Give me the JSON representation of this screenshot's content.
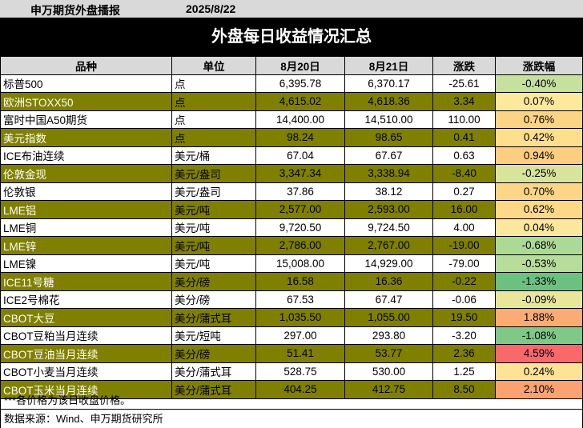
{
  "header": {
    "org": "申万期货外盘播报",
    "date": "2025/8/22"
  },
  "title": "外盘每日收益情况汇总",
  "columns": [
    "品种",
    "单位",
    "8月20日",
    "8月21日",
    "涨跌",
    "涨跌幅"
  ],
  "rows": [
    {
      "name": "标普500",
      "unit": "点",
      "d1": "6,395.78",
      "d2": "6,370.17",
      "chg": "-25.61",
      "pct": "-0.40%",
      "pct_color": "#c6e0a0",
      "style": "plain"
    },
    {
      "name": "欧洲STOXX50",
      "unit": "点",
      "d1": "4,615.02",
      "d2": "4,618.36",
      "chg": "3.34",
      "pct": "0.07%",
      "pct_color": "#fde89c",
      "style": "olive"
    },
    {
      "name": "富时中国A50期货",
      "unit": "点",
      "d1": "14,400.00",
      "d2": "14,510.00",
      "chg": "110.00",
      "pct": "0.76%",
      "pct_color": "#fdd384",
      "style": "plain"
    },
    {
      "name": "美元指数",
      "unit": "点",
      "d1": "98.24",
      "d2": "98.65",
      "chg": "0.41",
      "pct": "0.42%",
      "pct_color": "#fddf8e",
      "style": "olive"
    },
    {
      "name": "ICE布油连续",
      "unit": "美元/桶",
      "d1": "67.04",
      "d2": "67.67",
      "chg": "0.63",
      "pct": "0.94%",
      "pct_color": "#fcce80",
      "style": "plain"
    },
    {
      "name": "伦敦金现",
      "unit": "美元/盎司",
      "d1": "3,347.34",
      "d2": "3,338.94",
      "chg": "-8.40",
      "pct": "-0.25%",
      "pct_color": "#d7e49a",
      "style": "olive"
    },
    {
      "name": "伦敦银",
      "unit": "美元/盎司",
      "d1": "37.86",
      "d2": "38.12",
      "chg": "0.27",
      "pct": "0.70%",
      "pct_color": "#fdd586",
      "style": "plain"
    },
    {
      "name": "LME铝",
      "unit": "美元/吨",
      "d1": "2,577.00",
      "d2": "2,593.00",
      "chg": "16.00",
      "pct": "0.62%",
      "pct_color": "#fdd888",
      "style": "olive"
    },
    {
      "name": "LME铜",
      "unit": "美元/吨",
      "d1": "9,720.50",
      "d2": "9,724.50",
      "chg": "4.00",
      "pct": "0.04%",
      "pct_color": "#fce89c",
      "style": "plain"
    },
    {
      "name": "LME锌",
      "unit": "美元/吨",
      "d1": "2,786.00",
      "d2": "2,767.00",
      "chg": "-19.00",
      "pct": "-0.68%",
      "pct_color": "#add998",
      "style": "olive"
    },
    {
      "name": "LME镍",
      "unit": "美元/吨",
      "d1": "15,008.00",
      "d2": "14,929.00",
      "chg": "-79.00",
      "pct": "-0.53%",
      "pct_color": "#b8dc9a",
      "style": "plain"
    },
    {
      "name": "ICE11号糖",
      "unit": "美分/磅",
      "d1": "16.58",
      "d2": "16.36",
      "chg": "-0.22",
      "pct": "-1.33%",
      "pct_color": "#6cc180",
      "style": "olive"
    },
    {
      "name": "ICE2号棉花",
      "unit": "美分/磅",
      "d1": "67.53",
      "d2": "67.47",
      "chg": "-0.06",
      "pct": "-0.09%",
      "pct_color": "#e9e69c",
      "style": "plain"
    },
    {
      "name": "CBOT大豆",
      "unit": "美分/蒲式耳",
      "d1": "1,035.50",
      "d2": "1,055.00",
      "chg": "19.50",
      "pct": "1.88%",
      "pct_color": "#fbab74",
      "style": "olive"
    },
    {
      "name": "CBOT豆粕当月连续",
      "unit": "美元/短吨",
      "d1": "297.00",
      "d2": "293.80",
      "chg": "-3.20",
      "pct": "-1.08%",
      "pct_color": "#80c888",
      "style": "plain"
    },
    {
      "name": "CBOT豆油当月连续",
      "unit": "美分/磅",
      "d1": "51.41",
      "d2": "53.77",
      "chg": "2.36",
      "pct": "4.59%",
      "pct_color": "#f8696b",
      "style": "olive"
    },
    {
      "name": "CBOT小麦当月连续",
      "unit": "美分/蒲式耳",
      "d1": "528.75",
      "d2": "530.00",
      "chg": "1.25",
      "pct": "0.24%",
      "pct_color": "#fde396",
      "style": "plain"
    },
    {
      "name": "CBOT玉米当月连续",
      "unit": "美分/蒲式耳",
      "d1": "404.25",
      "d2": "412.75",
      "chg": "8.50",
      "pct": "2.10%",
      "pct_color": "#faa272",
      "style": "olive"
    }
  ],
  "note": "***各价格为该日收盘价格。",
  "source": "数据来源：Wind、申万期货研究所"
}
